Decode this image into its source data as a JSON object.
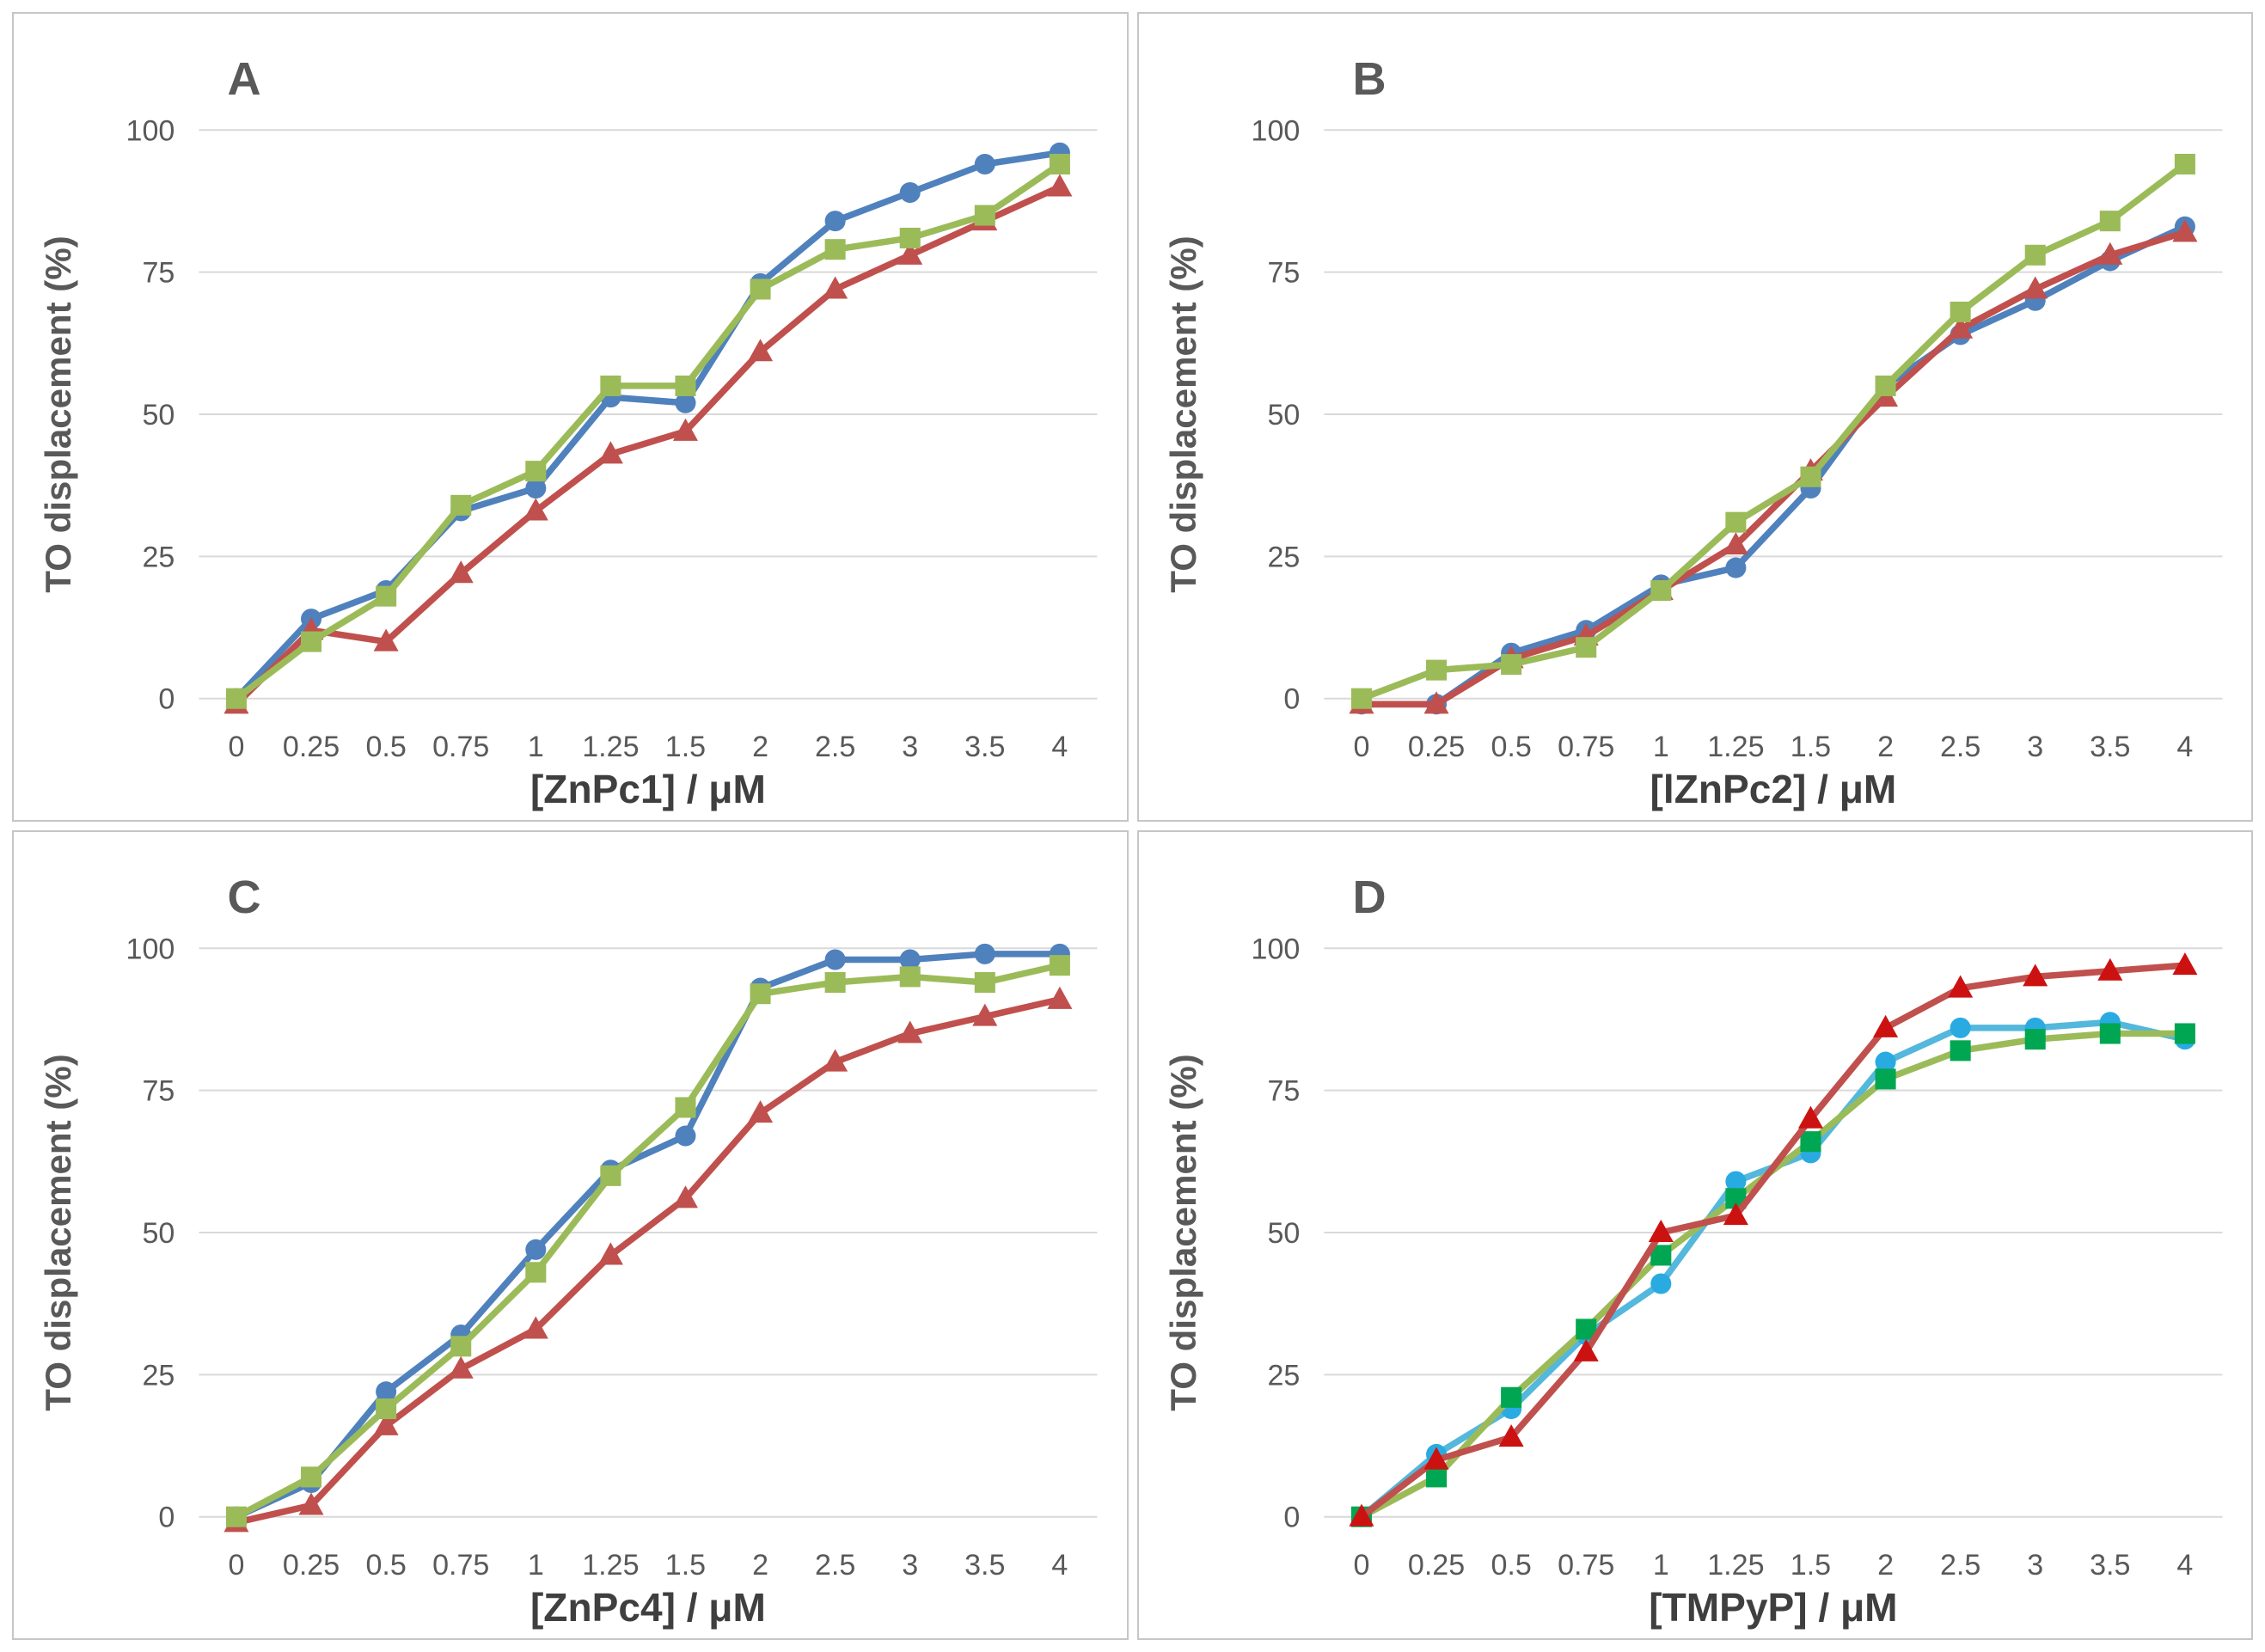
{
  "figure": {
    "ylabel": "TO displacement (%)",
    "x_categories": [
      "0",
      "0.25",
      "0.5",
      "0.75",
      "1",
      "1.25",
      "1.5",
      "2",
      "2.5",
      "3",
      "3.5",
      "4"
    ],
    "yticks": [
      0,
      25,
      50,
      75,
      100
    ],
    "grid_color": "#d9d9d9",
    "tick_label_color": "#595959",
    "axis_title_color": "#3f3f3f",
    "panel_letter_color": "#595959",
    "panel_border_color": "#c6c6c6",
    "background_color": "#ffffff"
  },
  "chart_data": [
    {
      "type": "line",
      "title": "A",
      "xlabel": "[ZnPc1] / μM",
      "ylabel": "TO displacement (%)",
      "categories": [
        "0",
        "0.25",
        "0.5",
        "0.75",
        "1",
        "1.25",
        "1.5",
        "2",
        "2.5",
        "3",
        "3.5",
        "4"
      ],
      "yticks": [
        0,
        25,
        50,
        75,
        100
      ],
      "ylim": [
        -4,
        108
      ],
      "grid": "horizontal",
      "legend": "none",
      "series": [
        {
          "name": "blue-circles",
          "marker": "circle",
          "line_color": "#4f81bd",
          "marker_color": "#4f81bd",
          "values": [
            0,
            14,
            19,
            33,
            37,
            53,
            52,
            73,
            84,
            89,
            94,
            96
          ]
        },
        {
          "name": "red-triangles",
          "marker": "triangle",
          "line_color": "#c0504d",
          "marker_color": "#c0504d",
          "values": [
            -1,
            12,
            10,
            22,
            33,
            43,
            47,
            61,
            72,
            78,
            84,
            90
          ]
        },
        {
          "name": "green-squares",
          "marker": "square",
          "line_color": "#9bbb59",
          "marker_color": "#9bbb59",
          "values": [
            0,
            10,
            18,
            34,
            40,
            55,
            55,
            72,
            79,
            81,
            85,
            94
          ]
        }
      ]
    },
    {
      "type": "line",
      "title": "B",
      "xlabel": "[lZnPc2] / μM",
      "ylabel": "TO displacement (%)",
      "categories": [
        "0",
        "0.25",
        "0.5",
        "0.75",
        "1",
        "1.25",
        "1.5",
        "2",
        "2.5",
        "3",
        "3.5",
        "4"
      ],
      "yticks": [
        0,
        25,
        50,
        75,
        100
      ],
      "ylim": [
        -4,
        108
      ],
      "grid": "horizontal",
      "legend": "none",
      "series": [
        {
          "name": "blue-circles",
          "marker": "circle",
          "line_color": "#4f81bd",
          "marker_color": "#4f81bd",
          "values": [
            -1,
            -1,
            8,
            12,
            20,
            23,
            37,
            55,
            64,
            70,
            77,
            83
          ]
        },
        {
          "name": "red-triangles",
          "marker": "triangle",
          "line_color": "#c0504d",
          "marker_color": "#c0504d",
          "values": [
            -1,
            -1,
            7,
            11,
            19,
            27,
            40,
            53,
            65,
            72,
            78,
            82
          ]
        },
        {
          "name": "green-squares",
          "marker": "square",
          "line_color": "#9bbb59",
          "marker_color": "#9bbb59",
          "values": [
            0,
            5,
            6,
            9,
            19,
            31,
            39,
            55,
            68,
            78,
            84,
            94
          ]
        }
      ]
    },
    {
      "type": "line",
      "title": "C",
      "xlabel": "[ZnPc4] / μM",
      "ylabel": "TO displacement (%)",
      "categories": [
        "0",
        "0.25",
        "0.5",
        "0.75",
        "1",
        "1.25",
        "1.5",
        "2",
        "2.5",
        "3",
        "3.5",
        "4"
      ],
      "yticks": [
        0,
        25,
        50,
        75,
        100
      ],
      "ylim": [
        -4,
        108
      ],
      "grid": "horizontal",
      "legend": "none",
      "series": [
        {
          "name": "blue-circles",
          "marker": "circle",
          "line_color": "#4f81bd",
          "marker_color": "#4f81bd",
          "values": [
            0,
            6,
            22,
            32,
            47,
            61,
            67,
            93,
            98,
            98,
            99,
            99
          ]
        },
        {
          "name": "red-triangles",
          "marker": "triangle",
          "line_color": "#c0504d",
          "marker_color": "#c0504d",
          "values": [
            -1,
            2,
            16,
            26,
            33,
            46,
            56,
            71,
            80,
            85,
            88,
            91
          ]
        },
        {
          "name": "green-squares",
          "marker": "square",
          "line_color": "#9bbb59",
          "marker_color": "#9bbb59",
          "values": [
            0,
            7,
            19,
            30,
            43,
            60,
            72,
            92,
            94,
            95,
            94,
            97
          ]
        }
      ]
    },
    {
      "type": "line",
      "title": "D",
      "xlabel": "[TMPyP] / μM",
      "ylabel": "TO displacement (%)",
      "categories": [
        "0",
        "0.25",
        "0.5",
        "0.75",
        "1",
        "1.25",
        "1.5",
        "2",
        "2.5",
        "3",
        "3.5",
        "4"
      ],
      "yticks": [
        0,
        25,
        50,
        75,
        100
      ],
      "ylim": [
        -4,
        108
      ],
      "grid": "horizontal",
      "legend": "none",
      "series": [
        {
          "name": "cyan-circles",
          "marker": "circle",
          "line_color": "#54b7dc",
          "marker_color": "#29abe2",
          "values": [
            0,
            11,
            19,
            32,
            41,
            59,
            64,
            80,
            86,
            86,
            87,
            84
          ]
        },
        {
          "name": "green-squares",
          "marker": "square",
          "line_color": "#9bbb59",
          "marker_color": "#00a651",
          "values": [
            0,
            7,
            21,
            33,
            46,
            56,
            66,
            77,
            82,
            84,
            85,
            85
          ]
        },
        {
          "name": "red-triangles",
          "marker": "triangle",
          "line_color": "#c0504d",
          "marker_color": "#cc1111",
          "values": [
            0,
            10,
            14,
            29,
            50,
            53,
            70,
            86,
            93,
            95,
            96,
            97
          ]
        }
      ]
    }
  ]
}
